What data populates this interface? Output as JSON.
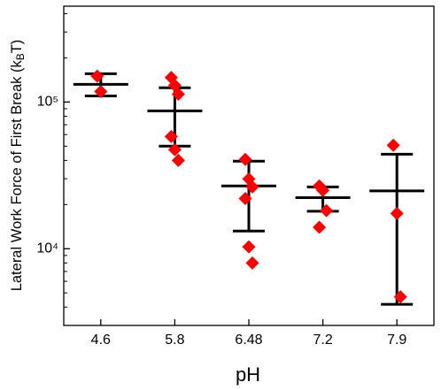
{
  "chart_data": {
    "type": "dotplot",
    "xlabel": "pH",
    "ylabel": [
      "Lateral Work Force of First Break (k",
      "B",
      "T)"
    ],
    "categories": [
      "4.6",
      "5.8",
      "6.48",
      "7.2",
      "7.9"
    ],
    "points": [
      [
        150000,
        118000
      ],
      [
        147000,
        130000,
        113000,
        58200,
        47300,
        40000
      ],
      [
        40600,
        29900,
        26400,
        22000,
        10300,
        8000
      ],
      [
        26800,
        25000,
        18200,
        14000
      ],
      [
        50700,
        17400,
        4700
      ]
    ],
    "mean": [
      132000,
      87000,
      26800,
      22300,
      24800
    ],
    "upper": [
      156000,
      125000,
      39500,
      26400,
      44100
    ],
    "lower": [
      110000,
      50000,
      13200,
      18000,
      4180
    ],
    "point_color": "#ff0000",
    "stat_color": "#000000",
    "log_y": true,
    "ylim": [
      3000,
      450000
    ],
    "yticks": [
      {
        "value": 10000,
        "label": "10⁴"
      },
      {
        "value": 100000,
        "label": "10⁵"
      }
    ],
    "yticks_minor": [
      4000,
      5000,
      6000,
      7000,
      8000,
      9000,
      20000,
      30000,
      40000,
      50000,
      60000,
      70000,
      80000,
      90000,
      200000,
      300000,
      400000
    ]
  }
}
